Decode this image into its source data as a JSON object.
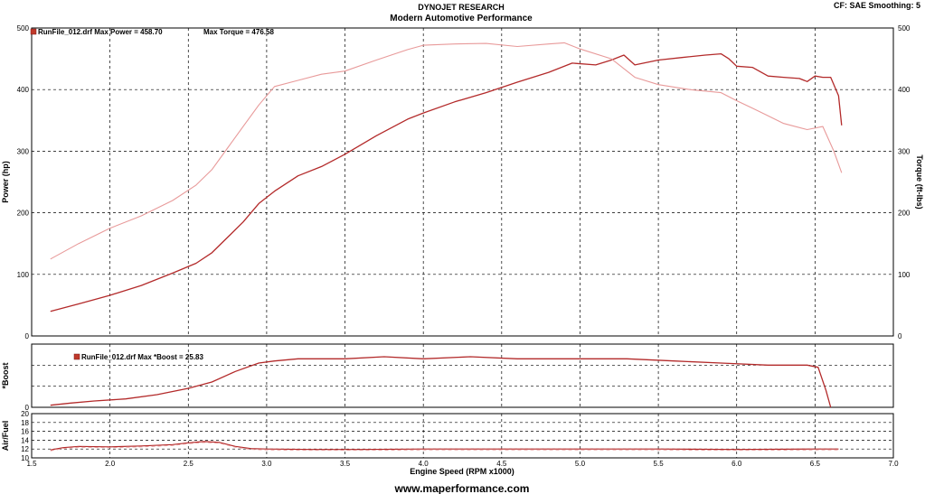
{
  "header": {
    "title": "DYNOJET RESEARCH",
    "subtitle": "Modern Automotive Performance",
    "settings": "CF: SAE  Smoothing: 5"
  },
  "footer": {
    "url": "www.maperformance.com"
  },
  "colors": {
    "curve": "#b32a2a",
    "curve_light": "#e89a9a",
    "grid": "#000000",
    "legend": "#c0392b"
  },
  "chart_data": [
    {
      "type": "line",
      "panel": "power-torque",
      "legend_text": "RunFile_012.drf Max Power = 458.70",
      "legend_text2": "Max Torque = 476.58",
      "xlabel": "Engine Speed (RPM x1000)",
      "ylabel": "Power (hp)",
      "ylabel_right": "Torque (ft-lbs)",
      "xlim": [
        1.5,
        7.0
      ],
      "ylim": [
        0,
        500
      ],
      "y2lim": [
        0,
        500
      ],
      "xticks": [
        "1.5",
        "2.0",
        "2.5",
        "3.0",
        "3.5",
        "4.0",
        "4.5",
        "5.0",
        "5.5",
        "6.0",
        "6.5",
        "7.0"
      ],
      "yticks": [
        "0",
        "100",
        "200",
        "300",
        "400",
        "500"
      ],
      "grid": true,
      "series": [
        {
          "name": "Power",
          "x": [
            1.62,
            1.8,
            2.0,
            2.2,
            2.4,
            2.55,
            2.65,
            2.75,
            2.85,
            2.95,
            3.05,
            3.2,
            3.35,
            3.5,
            3.7,
            3.9,
            4.0,
            4.2,
            4.4,
            4.6,
            4.8,
            4.95,
            5.1,
            5.2,
            5.28,
            5.35,
            5.5,
            5.65,
            5.8,
            5.9,
            5.95,
            6.0,
            6.1,
            6.2,
            6.3,
            6.4,
            6.45,
            6.5,
            6.55,
            6.6,
            6.65,
            6.67
          ],
          "y": [
            40,
            52,
            66,
            82,
            102,
            118,
            135,
            160,
            185,
            215,
            235,
            260,
            275,
            295,
            325,
            352,
            362,
            380,
            395,
            412,
            428,
            443,
            440,
            448,
            456,
            440,
            448,
            452,
            456,
            458,
            450,
            438,
            436,
            422,
            420,
            418,
            413,
            422,
            420,
            420,
            390,
            342
          ]
        },
        {
          "name": "Torque",
          "x": [
            1.62,
            1.8,
            2.0,
            2.2,
            2.4,
            2.55,
            2.65,
            2.75,
            2.85,
            2.95,
            3.05,
            3.2,
            3.35,
            3.5,
            3.7,
            3.9,
            4.0,
            4.2,
            4.4,
            4.6,
            4.8,
            4.9,
            5.0,
            5.2,
            5.35,
            5.5,
            5.7,
            5.9,
            6.0,
            6.1,
            6.3,
            6.45,
            6.55,
            6.62,
            6.67
          ],
          "y": [
            125,
            150,
            175,
            195,
            220,
            245,
            270,
            305,
            340,
            375,
            405,
            415,
            425,
            430,
            448,
            465,
            472,
            474,
            475,
            470,
            474,
            476,
            466,
            450,
            420,
            408,
            400,
            395,
            382,
            370,
            345,
            335,
            340,
            300,
            265
          ]
        }
      ]
    },
    {
      "type": "line",
      "panel": "boost",
      "legend_text": "RunFile_012.drf Max *Boost = 25.83",
      "ylabel": "*Boost",
      "ylim": [
        0,
        30
      ],
      "yticks": [
        "0"
      ],
      "grid": true,
      "series": [
        {
          "name": "*Boost",
          "x": [
            1.62,
            1.75,
            1.9,
            2.1,
            2.3,
            2.5,
            2.65,
            2.8,
            2.95,
            3.05,
            3.2,
            3.5,
            3.75,
            4.0,
            4.3,
            4.6,
            5.0,
            5.3,
            5.6,
            5.9,
            6.2,
            6.45,
            6.52,
            6.57,
            6.6
          ],
          "y": [
            1,
            2,
            3,
            4,
            6,
            9,
            12,
            17,
            21,
            22,
            23,
            23,
            24,
            23,
            24,
            23,
            23,
            23,
            22,
            21,
            20,
            20,
            19,
            8,
            0
          ]
        }
      ]
    },
    {
      "type": "line",
      "panel": "air-fuel",
      "ylabel": "Air/Fuel",
      "ylim": [
        10,
        20
      ],
      "yticks": [
        "10",
        "12",
        "14",
        "16",
        "18",
        "20"
      ],
      "grid": true,
      "series": [
        {
          "name": "Air/Fuel",
          "x": [
            1.62,
            1.7,
            1.8,
            2.0,
            2.2,
            2.4,
            2.5,
            2.6,
            2.7,
            2.8,
            2.9,
            3.0,
            3.3,
            3.6,
            4.0,
            4.5,
            5.0,
            5.5,
            6.0,
            6.5,
            6.65
          ],
          "y": [
            11.8,
            12.3,
            12.6,
            12.5,
            12.7,
            13.0,
            13.4,
            13.7,
            13.5,
            12.6,
            12.1,
            12.0,
            11.9,
            11.9,
            12.0,
            12.0,
            12.0,
            12.0,
            11.9,
            12.0,
            12.0
          ]
        }
      ]
    }
  ]
}
